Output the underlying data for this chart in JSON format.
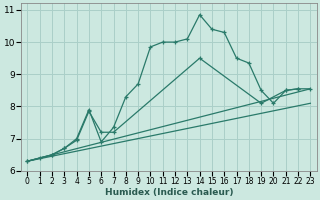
{
  "xlabel": "Humidex (Indice chaleur)",
  "bg_color": "#cce8e0",
  "grid_color": "#aacfc8",
  "line_color": "#2a7a6a",
  "xlim": [
    -0.5,
    23.5
  ],
  "ylim": [
    6,
    11.2
  ],
  "xticks": [
    0,
    1,
    2,
    3,
    4,
    5,
    6,
    7,
    8,
    9,
    10,
    11,
    12,
    13,
    14,
    15,
    16,
    17,
    18,
    19,
    20,
    21,
    22,
    23
  ],
  "yticks": [
    6,
    7,
    8,
    9,
    10,
    11
  ],
  "line1_x": [
    0,
    1,
    2,
    3,
    4,
    5,
    6,
    7,
    8,
    9,
    10,
    11,
    12,
    13,
    14,
    15,
    16,
    17,
    18,
    19,
    20,
    21,
    22
  ],
  "line1_y": [
    6.3,
    6.4,
    6.5,
    6.7,
    7.0,
    7.9,
    6.9,
    7.35,
    8.3,
    8.7,
    9.85,
    10.0,
    10.0,
    10.1,
    10.85,
    10.4,
    10.3,
    9.5,
    9.35,
    8.5,
    8.1,
    8.5,
    8.55
  ],
  "line2_x": [
    0,
    2,
    3,
    4,
    5,
    6,
    7,
    14,
    19,
    21,
    22,
    23
  ],
  "line2_y": [
    6.3,
    6.5,
    6.7,
    6.95,
    7.85,
    7.2,
    7.2,
    9.5,
    8.1,
    8.5,
    8.55,
    8.55
  ],
  "line3_x": [
    0,
    23
  ],
  "line3_y": [
    6.3,
    8.55
  ],
  "line4_x": [
    0,
    23
  ],
  "line4_y": [
    6.3,
    8.1
  ]
}
